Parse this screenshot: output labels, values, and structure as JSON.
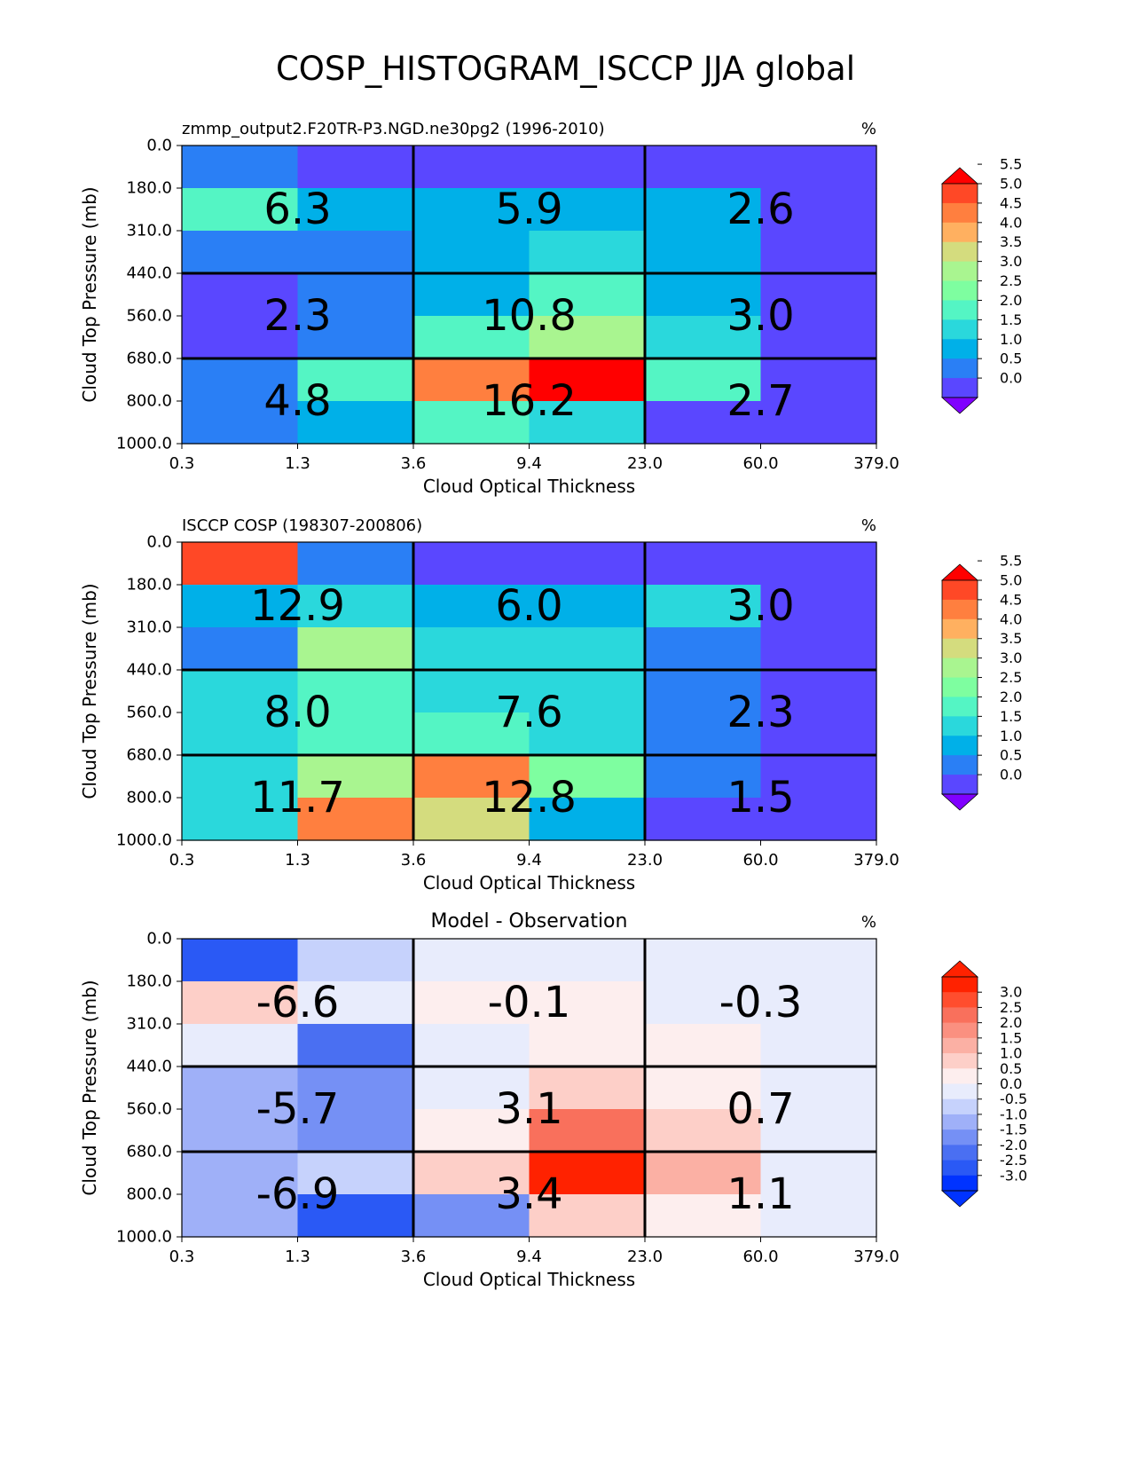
{
  "figure": {
    "title": "COSP_HISTOGRAM_ISCCP JJA global"
  },
  "chart_data": [
    {
      "type": "heatmap",
      "title_left": "zmmp_output2.F20TR-P3.NGD.ne30pg2 (1996-2010)",
      "title_center": "",
      "title_right": "%",
      "xlabel": "Cloud Optical Thickness",
      "ylabel": "Cloud Top Pressure (mb)",
      "x_ticks": [
        "0.3",
        "1.3",
        "3.6",
        "9.4",
        "23.0",
        "60.0",
        "379.0"
      ],
      "y_ticks": [
        "0.0",
        "180.0",
        "310.0",
        "440.0",
        "560.0",
        "680.0",
        "800.0",
        "1000.0"
      ],
      "values": [
        [
          0.6,
          0.2,
          0.2,
          0.2,
          0.2,
          0.2
        ],
        [
          2.0,
          1.2,
          1.2,
          1.2,
          1.2,
          0.2
        ],
        [
          0.6,
          0.6,
          1.2,
          1.8,
          1.2,
          0.2
        ],
        [
          0.2,
          0.6,
          1.2,
          2.4,
          1.2,
          0.2
        ],
        [
          0.2,
          0.6,
          2.4,
          3.4,
          1.8,
          0.2
        ],
        [
          0.6,
          2.2,
          4.9,
          5.9,
          2.1,
          0.2
        ],
        [
          0.6,
          1.2,
          2.0,
          1.8,
          0.2,
          0.2
        ]
      ],
      "group_labels": [
        [
          "6.3",
          "5.9",
          "2.6"
        ],
        [
          "2.3",
          "10.8",
          "3.0"
        ],
        [
          "4.8",
          "16.2",
          "2.7"
        ]
      ],
      "colorbar": {
        "type": "rainbow",
        "ticks": [
          "0.0",
          "0.5",
          "1.0",
          "1.5",
          "2.0",
          "2.5",
          "3.0",
          "3.5",
          "4.0",
          "4.5",
          "5.0",
          "5.5"
        ],
        "colors": [
          "#8000ff",
          "#5a47ff",
          "#2a7ff5",
          "#00b0e8",
          "#2ad8dc",
          "#54f5c4",
          "#7efea0",
          "#a9f590",
          "#d4dc7e",
          "#ffb060",
          "#ff7f3f",
          "#ff4826",
          "#ff0000"
        ]
      }
    },
    {
      "type": "heatmap",
      "title_left": "ISCCP COSP (198307-200806)",
      "title_center": "",
      "title_right": "%",
      "xlabel": "Cloud Optical Thickness",
      "ylabel": "Cloud Top Pressure (mb)",
      "x_ticks": [
        "0.3",
        "1.3",
        "3.6",
        "9.4",
        "23.0",
        "60.0",
        "379.0"
      ],
      "y_ticks": [
        "0.0",
        "180.0",
        "310.0",
        "440.0",
        "560.0",
        "680.0",
        "800.0",
        "1000.0"
      ],
      "values": [
        [
          5.1,
          0.6,
          0.2,
          0.2,
          0.2,
          0.2
        ],
        [
          1.2,
          1.8,
          1.2,
          1.2,
          1.8,
          0.2
        ],
        [
          0.6,
          3.2,
          1.8,
          1.8,
          0.6,
          0.2
        ],
        [
          1.8,
          2.2,
          1.8,
          1.8,
          0.6,
          0.2
        ],
        [
          1.8,
          2.2,
          2.2,
          1.8,
          0.6,
          0.2
        ],
        [
          1.8,
          3.2,
          4.6,
          2.8,
          0.6,
          0.2
        ],
        [
          1.8,
          4.6,
          3.7,
          1.2,
          0.2,
          0.2
        ]
      ],
      "group_labels": [
        [
          "12.9",
          "6.0",
          "3.0"
        ],
        [
          "8.0",
          "7.6",
          "2.3"
        ],
        [
          "11.7",
          "12.8",
          "1.5"
        ]
      ],
      "colorbar": {
        "type": "rainbow",
        "ticks": [
          "0.0",
          "0.5",
          "1.0",
          "1.5",
          "2.0",
          "2.5",
          "3.0",
          "3.5",
          "4.0",
          "4.5",
          "5.0",
          "5.5"
        ],
        "colors": [
          "#8000ff",
          "#5a47ff",
          "#2a7ff5",
          "#00b0e8",
          "#2ad8dc",
          "#54f5c4",
          "#7efea0",
          "#a9f590",
          "#d4dc7e",
          "#ffb060",
          "#ff7f3f",
          "#ff4826",
          "#ff0000"
        ]
      }
    },
    {
      "type": "heatmap",
      "title_left": "",
      "title_center": "Model - Observation",
      "title_right": "%",
      "xlabel": "Cloud Optical Thickness",
      "ylabel": "Cloud Top Pressure (mb)",
      "x_ticks": [
        "0.3",
        "1.3",
        "3.6",
        "9.4",
        "23.0",
        "60.0",
        "379.0"
      ],
      "y_ticks": [
        "0.0",
        "180.0",
        "310.0",
        "440.0",
        "560.0",
        "680.0",
        "800.0",
        "1000.0"
      ],
      "values": [
        [
          -3.0,
          -0.7,
          -0.1,
          -0.1,
          -0.1,
          -0.1
        ],
        [
          0.7,
          -0.1,
          0.1,
          0.1,
          -0.1,
          -0.1
        ],
        [
          -0.1,
          -2.2,
          -0.1,
          0.1,
          0.1,
          -0.1
        ],
        [
          -1.2,
          -2.0,
          -0.1,
          0.7,
          0.1,
          -0.1
        ],
        [
          -1.2,
          -1.7,
          0.1,
          2.2,
          0.7,
          -0.1
        ],
        [
          -1.2,
          -0.7,
          0.7,
          3.2,
          1.2,
          -0.1
        ],
        [
          -1.2,
          -3.0,
          -1.7,
          0.7,
          0.1,
          -0.1
        ]
      ],
      "group_labels": [
        [
          "-6.6",
          "-0.1",
          "-0.3"
        ],
        [
          "-5.7",
          "3.1",
          "0.7"
        ],
        [
          "-6.9",
          "3.4",
          "1.1"
        ]
      ],
      "colorbar": {
        "type": "diverging",
        "ticks": [
          "-3.0",
          "-2.5",
          "-2.0",
          "-1.5",
          "-1.0",
          "-0.5",
          "0.0",
          "0.5",
          "1.0",
          "1.5",
          "2.0",
          "2.5",
          "3.0"
        ],
        "colors": [
          "#0033ff",
          "#0033ff",
          "#2a59f5",
          "#4a6ff2",
          "#7590f5",
          "#9fb0f8",
          "#c6d2fc",
          "#e8ecfc",
          "#fdeeee",
          "#fdcfc8",
          "#fbb0a4",
          "#fa9080",
          "#f9705c",
          "#ff4d2e",
          "#ff2200",
          "#ff2200"
        ]
      }
    }
  ]
}
